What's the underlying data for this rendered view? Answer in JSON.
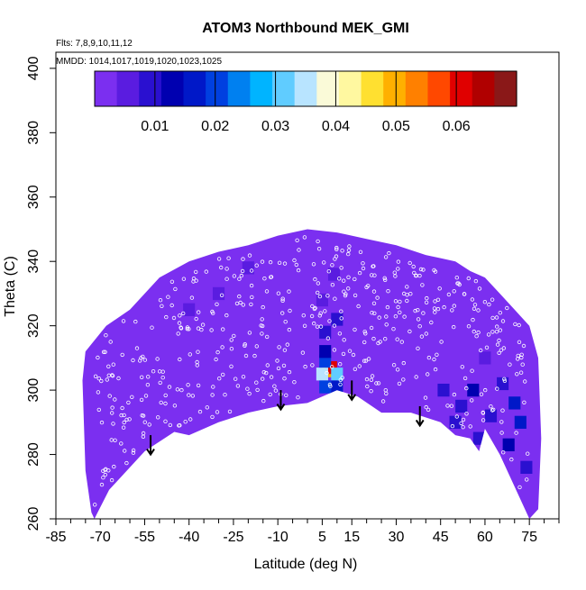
{
  "chart_data": {
    "type": "heatmap",
    "title": "ATOM3 Northbound MEK_GMI",
    "annotations": [
      "Flts: 7,8,9,10,11,12",
      "MMDD: 1014,1017,1019,1020,1023,1025"
    ],
    "xlabel": "Latitude (deg N)",
    "ylabel": "Theta (C)",
    "xlim": [
      -85,
      85
    ],
    "ylim": [
      260,
      405
    ],
    "x_ticks": [
      -85,
      -70,
      -55,
      -40,
      -25,
      -10,
      5,
      15,
      30,
      45,
      60,
      75
    ],
    "x_minor_step": 5,
    "y_ticks": [
      260,
      280,
      300,
      320,
      340,
      360,
      380,
      400
    ],
    "colorbar": {
      "range": [
        0,
        0.07
      ],
      "ticks": [
        0.01,
        0.02,
        0.03,
        0.04,
        0.05,
        0.06
      ],
      "colors": [
        "#7b2ff0",
        "#5a1ce0",
        "#2a10d0",
        "#0000b0",
        "#0018c8",
        "#0040e0",
        "#0080f0",
        "#00b4ff",
        "#60ccff",
        "#b8e4ff",
        "#fafad8",
        "#fff8a0",
        "#ffe030",
        "#ffb000",
        "#ff8000",
        "#ff4800",
        "#e00000",
        "#b00000",
        "#8a1818"
      ]
    },
    "field": {
      "background_value": 0.001,
      "background_color": "#7b2ff0",
      "envelope_lower": [
        [
          -72,
          260
        ],
        [
          -67,
          269
        ],
        [
          -55,
          281
        ],
        [
          -45,
          287
        ],
        [
          -40,
          286
        ],
        [
          -30,
          290
        ],
        [
          -20,
          293
        ],
        [
          -10,
          295
        ],
        [
          0,
          296
        ],
        [
          10,
          300
        ],
        [
          17,
          298
        ],
        [
          25,
          293
        ],
        [
          35,
          293
        ],
        [
          45,
          290
        ],
        [
          50,
          286
        ],
        [
          55,
          285
        ],
        [
          58,
          281
        ],
        [
          60,
          288
        ],
        [
          65,
          280
        ],
        [
          75,
          260
        ]
      ],
      "envelope_upper": [
        [
          78,
          263
        ],
        [
          79,
          285
        ],
        [
          78,
          310
        ],
        [
          75,
          320
        ],
        [
          70,
          325
        ],
        [
          65,
          330
        ],
        [
          60,
          335
        ],
        [
          55,
          337
        ],
        [
          50,
          340
        ],
        [
          45,
          341
        ],
        [
          40,
          342
        ],
        [
          30,
          345
        ],
        [
          20,
          347
        ],
        [
          10,
          349
        ],
        [
          0,
          350
        ],
        [
          -10,
          348
        ],
        [
          -20,
          345
        ],
        [
          -30,
          343
        ],
        [
          -40,
          340
        ],
        [
          -50,
          335
        ],
        [
          -60,
          325
        ],
        [
          -68,
          320
        ],
        [
          -75,
          312
        ],
        [
          -76,
          303
        ],
        [
          -75,
          275
        ],
        [
          -73,
          262
        ]
      ],
      "enhanced_cells": [
        {
          "lat": 7,
          "theta": 306,
          "value": 0.05
        },
        {
          "lat": 8,
          "theta": 307,
          "value": 0.06
        },
        {
          "lat": 5,
          "theta": 305,
          "value": 0.035
        },
        {
          "lat": 10,
          "theta": 305,
          "value": 0.03
        },
        {
          "lat": 6,
          "theta": 309,
          "value": 0.02
        },
        {
          "lat": 6,
          "theta": 312,
          "value": 0.012
        },
        {
          "lat": 6,
          "theta": 301,
          "value": 0.022
        },
        {
          "lat": 10,
          "theta": 301,
          "value": 0.018
        },
        {
          "lat": 6,
          "theta": 318,
          "value": 0.008
        },
        {
          "lat": 10,
          "theta": 322,
          "value": 0.008
        },
        {
          "lat": 5,
          "theta": 328,
          "value": 0.007
        },
        {
          "lat": 9,
          "theta": 336,
          "value": 0.006
        },
        {
          "lat": 70,
          "theta": 296,
          "value": 0.018
        },
        {
          "lat": 72,
          "theta": 290,
          "value": 0.015
        },
        {
          "lat": 68,
          "theta": 283,
          "value": 0.012
        },
        {
          "lat": 56,
          "theta": 300,
          "value": 0.012
        },
        {
          "lat": 62,
          "theta": 292,
          "value": 0.01
        },
        {
          "lat": 58,
          "theta": 285,
          "value": 0.01
        },
        {
          "lat": 52,
          "theta": 295,
          "value": 0.009
        },
        {
          "lat": 46,
          "theta": 300,
          "value": 0.008
        },
        {
          "lat": 50,
          "theta": 290,
          "value": 0.008
        },
        {
          "lat": 60,
          "theta": 310,
          "value": 0.007
        },
        {
          "lat": 66,
          "theta": 302,
          "value": 0.01
        },
        {
          "lat": 74,
          "theta": 276,
          "value": 0.009
        },
        {
          "lat": -30,
          "theta": 330,
          "value": 0.005
        },
        {
          "lat": -40,
          "theta": 325,
          "value": 0.004
        },
        {
          "lat": -20,
          "theta": 338,
          "value": 0.004
        }
      ]
    },
    "arrows": [
      {
        "lat": -53,
        "theta": 286,
        "length": 6
      },
      {
        "lat": -9,
        "theta": 300,
        "length": 6
      },
      {
        "lat": 15,
        "theta": 303,
        "length": 6
      },
      {
        "lat": 38,
        "theta": 295,
        "length": 6
      }
    ]
  }
}
